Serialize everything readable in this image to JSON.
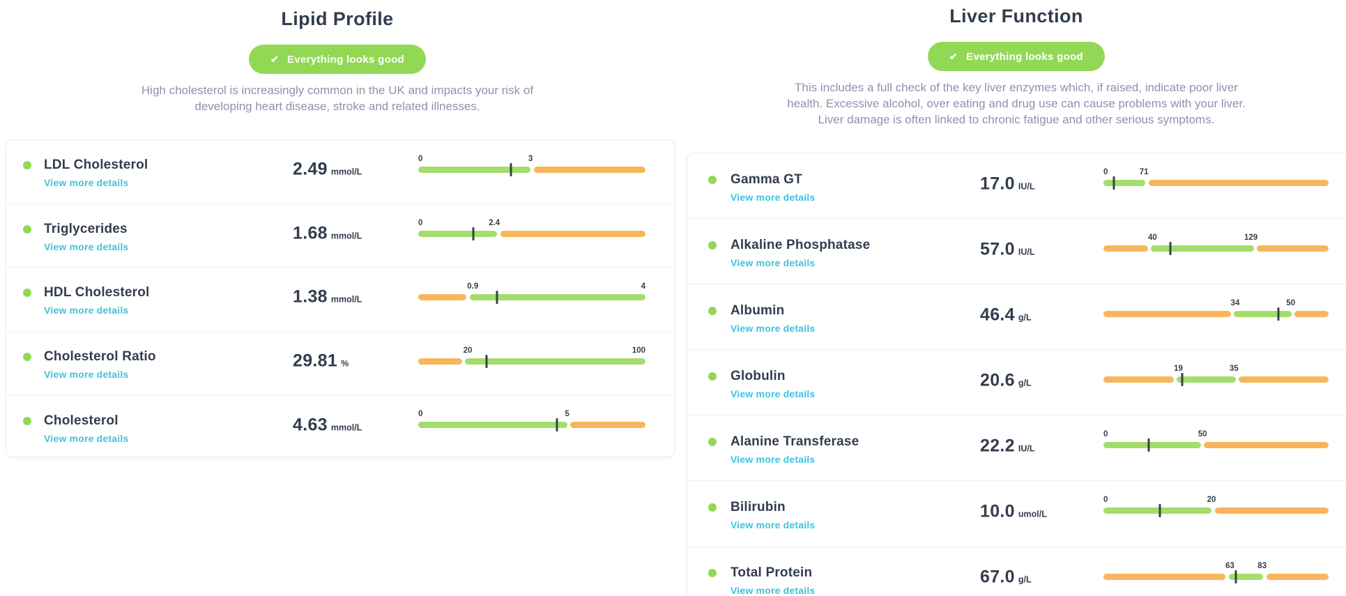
{
  "colors": {
    "navy": "#333d4f",
    "description_gray": "#8b93ad",
    "teal_link": "#3cc3de",
    "badge_green": "#92d855",
    "dot_green": "#92d855",
    "bar_green": "#a4dd6b",
    "bar_orange": "#f8b65c",
    "tick_dark": "#3b4046"
  },
  "panels": [
    {
      "title": "Lipid Profile",
      "badge_label": "Everything looks good",
      "badge_icon": "check-icon",
      "description": "High cholesterol is increasingly common in the UK and impacts your risk of developing heart disease, stroke and related illnesses.",
      "rows": [
        {
          "name": "LDL Cholesterol",
          "link": "View more details",
          "value": "2.49",
          "unit": "mmol/L",
          "gauge": {
            "segments": [
              {
                "color": "bar_green",
                "from": 0,
                "to": 0.494
              },
              {
                "color": "bar_orange",
                "from": 0.509,
                "to": 1
              }
            ],
            "labels": [
              {
                "text": "0",
                "frac": 0,
                "align": "left"
              },
              {
                "text": "3",
                "frac": 0.494,
                "align": "center"
              }
            ],
            "tick_frac": 0.407
          }
        },
        {
          "name": "Triglycerides",
          "link": "View more details",
          "value": "1.68",
          "unit": "mmol/L",
          "gauge": {
            "segments": [
              {
                "color": "bar_green",
                "from": 0,
                "to": 0.347
              },
              {
                "color": "bar_orange",
                "from": 0.362,
                "to": 1
              }
            ],
            "labels": [
              {
                "text": "0",
                "frac": 0,
                "align": "left"
              },
              {
                "text": "2.4",
                "frac": 0.335,
                "align": "center"
              }
            ],
            "tick_frac": 0.242
          }
        },
        {
          "name": "HDL Cholesterol",
          "link": "View more details",
          "value": "1.38",
          "unit": "mmol/L",
          "gauge": {
            "segments": [
              {
                "color": "bar_orange",
                "from": 0,
                "to": 0.213
              },
              {
                "color": "bar_green",
                "from": 0.227,
                "to": 1
              }
            ],
            "labels": [
              {
                "text": "0.9",
                "frac": 0.24,
                "align": "center"
              },
              {
                "text": "4",
                "frac": 1,
                "align": "right"
              }
            ],
            "tick_frac": 0.347
          }
        },
        {
          "name": "Cholesterol Ratio",
          "link": "View more details",
          "value": "29.81",
          "unit": "%",
          "gauge": {
            "segments": [
              {
                "color": "bar_orange",
                "from": 0,
                "to": 0.193
              },
              {
                "color": "bar_green",
                "from": 0.207,
                "to": 1
              }
            ],
            "labels": [
              {
                "text": "20",
                "frac": 0.218,
                "align": "center"
              },
              {
                "text": "100",
                "frac": 1,
                "align": "right"
              }
            ],
            "tick_frac": 0.301
          }
        },
        {
          "name": "Cholesterol",
          "link": "View more details",
          "value": "4.63",
          "unit": "mmol/L",
          "gauge": {
            "segments": [
              {
                "color": "bar_green",
                "from": 0,
                "to": 0.655
              },
              {
                "color": "bar_orange",
                "from": 0.67,
                "to": 1
              }
            ],
            "labels": [
              {
                "text": "0",
                "frac": 0,
                "align": "left"
              },
              {
                "text": "5",
                "frac": 0.655,
                "align": "center"
              }
            ],
            "tick_frac": 0.61
          }
        }
      ]
    },
    {
      "title": "Liver Function",
      "badge_label": "Everything looks good",
      "badge_icon": "check-icon",
      "description": "This includes a full check of the key liver enzymes which, if raised, indicate poor liver health. Excessive alcohol, over eating and drug use can cause problems with your liver. Liver damage is often linked to chronic fatigue and other serious symptoms.",
      "rows": [
        {
          "name": "Gamma GT",
          "link": "View more details",
          "value": "17.0",
          "unit": "IU/L",
          "gauge": {
            "segments": [
              {
                "color": "bar_green",
                "from": 0,
                "to": 0.186
              },
              {
                "color": "bar_orange",
                "from": 0.2,
                "to": 1
              }
            ],
            "labels": [
              {
                "text": "0",
                "frac": 0,
                "align": "left"
              },
              {
                "text": "71",
                "frac": 0.18,
                "align": "center"
              }
            ],
            "tick_frac": 0.046
          }
        },
        {
          "name": "Alkaline Phosphatase",
          "link": "View more details",
          "value": "57.0",
          "unit": "IU/L",
          "gauge": {
            "segments": [
              {
                "color": "bar_orange",
                "from": 0,
                "to": 0.198
              },
              {
                "color": "bar_green",
                "from": 0.211,
                "to": 0.669
              },
              {
                "color": "bar_orange",
                "from": 0.682,
                "to": 1
              }
            ],
            "labels": [
              {
                "text": "40",
                "frac": 0.218,
                "align": "center"
              },
              {
                "text": "129",
                "frac": 0.655,
                "align": "center"
              }
            ],
            "tick_frac": 0.297
          }
        },
        {
          "name": "Albumin",
          "link": "View more details",
          "value": "46.4",
          "unit": "g/L",
          "gauge": {
            "segments": [
              {
                "color": "bar_orange",
                "from": 0,
                "to": 0.566
              },
              {
                "color": "bar_green",
                "from": 0.579,
                "to": 0.836
              },
              {
                "color": "bar_orange",
                "from": 0.849,
                "to": 1
              }
            ],
            "labels": [
              {
                "text": "34",
                "frac": 0.585,
                "align": "center"
              },
              {
                "text": "50",
                "frac": 0.832,
                "align": "center"
              }
            ],
            "tick_frac": 0.777
          }
        },
        {
          "name": "Globulin",
          "link": "View more details",
          "value": "20.6",
          "unit": "g/L",
          "gauge": {
            "segments": [
              {
                "color": "bar_orange",
                "from": 0,
                "to": 0.313
              },
              {
                "color": "bar_green",
                "from": 0.326,
                "to": 0.588
              },
              {
                "color": "bar_orange",
                "from": 0.601,
                "to": 1
              }
            ],
            "labels": [
              {
                "text": "19",
                "frac": 0.333,
                "align": "center"
              },
              {
                "text": "35",
                "frac": 0.58,
                "align": "center"
              }
            ],
            "tick_frac": 0.35
          }
        },
        {
          "name": "Alanine Transferase",
          "link": "View more details",
          "value": "22.2",
          "unit": "IU/L",
          "gauge": {
            "segments": [
              {
                "color": "bar_green",
                "from": 0,
                "to": 0.433
              },
              {
                "color": "bar_orange",
                "from": 0.447,
                "to": 1
              }
            ],
            "labels": [
              {
                "text": "0",
                "frac": 0,
                "align": "left"
              },
              {
                "text": "50",
                "frac": 0.44,
                "align": "center"
              }
            ],
            "tick_frac": 0.2
          }
        },
        {
          "name": "Bilirubin",
          "link": "View more details",
          "value": "10.0",
          "unit": "umol/L",
          "gauge": {
            "segments": [
              {
                "color": "bar_green",
                "from": 0,
                "to": 0.48
              },
              {
                "color": "bar_orange",
                "from": 0.494,
                "to": 1
              }
            ],
            "labels": [
              {
                "text": "0",
                "frac": 0,
                "align": "left"
              },
              {
                "text": "20",
                "frac": 0.48,
                "align": "center"
              }
            ],
            "tick_frac": 0.25
          }
        },
        {
          "name": "Total Protein",
          "link": "View more details",
          "value": "67.0",
          "unit": "g/L",
          "gauge": {
            "segments": [
              {
                "color": "bar_orange",
                "from": 0,
                "to": 0.542
              },
              {
                "color": "bar_green",
                "from": 0.556,
                "to": 0.709
              },
              {
                "color": "bar_orange",
                "from": 0.723,
                "to": 1
              }
            ],
            "labels": [
              {
                "text": "63",
                "frac": 0.562,
                "align": "center"
              },
              {
                "text": "83",
                "frac": 0.705,
                "align": "center"
              }
            ],
            "tick_frac": 0.588
          }
        }
      ]
    }
  ]
}
